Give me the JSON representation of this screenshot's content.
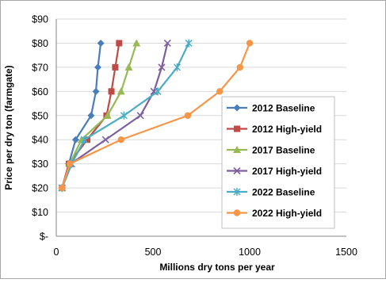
{
  "chart_data": {
    "type": "line",
    "xlabel": "Millions dry tons per year",
    "ylabel": "Price per dry ton (farmgate)",
    "xlim": [
      0,
      1500
    ],
    "ylim": [
      0,
      90
    ],
    "x_ticks": [
      0,
      500,
      1000,
      1500
    ],
    "y_ticks": [
      0,
      10,
      20,
      30,
      40,
      50,
      60,
      70,
      80,
      90
    ],
    "x_tick_labels": [
      "0",
      "500",
      "1000",
      "1500"
    ],
    "y_tick_labels": [
      "$-",
      "$10",
      "$20",
      "$30",
      "$40",
      "$50",
      "$60",
      "$70",
      "$80",
      "$90"
    ],
    "grid": "horizontal",
    "legend_position": "right",
    "series": [
      {
        "name": "2012 Baseline",
        "color": "#4A7EBB",
        "marker": "diamond",
        "x": [
          30,
          65,
          100,
          180,
          205,
          215,
          230
        ],
        "y": [
          20,
          30,
          40,
          50,
          60,
          70,
          80
        ]
      },
      {
        "name": "2012 High-yield",
        "color": "#BE4B48",
        "marker": "square",
        "x": [
          30,
          65,
          160,
          260,
          285,
          305,
          325
        ],
        "y": [
          20,
          30,
          40,
          50,
          60,
          70,
          80
        ]
      },
      {
        "name": "2017 Baseline",
        "color": "#98B954",
        "marker": "triangle",
        "x": [
          30,
          70,
          130,
          265,
          335,
          375,
          415
        ],
        "y": [
          20,
          30,
          40,
          50,
          60,
          70,
          80
        ]
      },
      {
        "name": "2017 High-yield",
        "color": "#7D5FA0",
        "marker": "x",
        "x": [
          30,
          75,
          255,
          435,
          505,
          545,
          575
        ],
        "y": [
          20,
          30,
          40,
          50,
          60,
          70,
          80
        ]
      },
      {
        "name": "2022 Baseline",
        "color": "#4BACC6",
        "marker": "star",
        "x": [
          30,
          80,
          145,
          350,
          525,
          625,
          685
        ],
        "y": [
          20,
          30,
          40,
          50,
          60,
          70,
          80
        ]
      },
      {
        "name": "2022 High-yield",
        "color": "#F79646",
        "marker": "circle",
        "x": [
          30,
          70,
          335,
          680,
          845,
          950,
          1000
        ],
        "y": [
          20,
          30,
          40,
          50,
          60,
          70,
          80
        ]
      }
    ]
  }
}
